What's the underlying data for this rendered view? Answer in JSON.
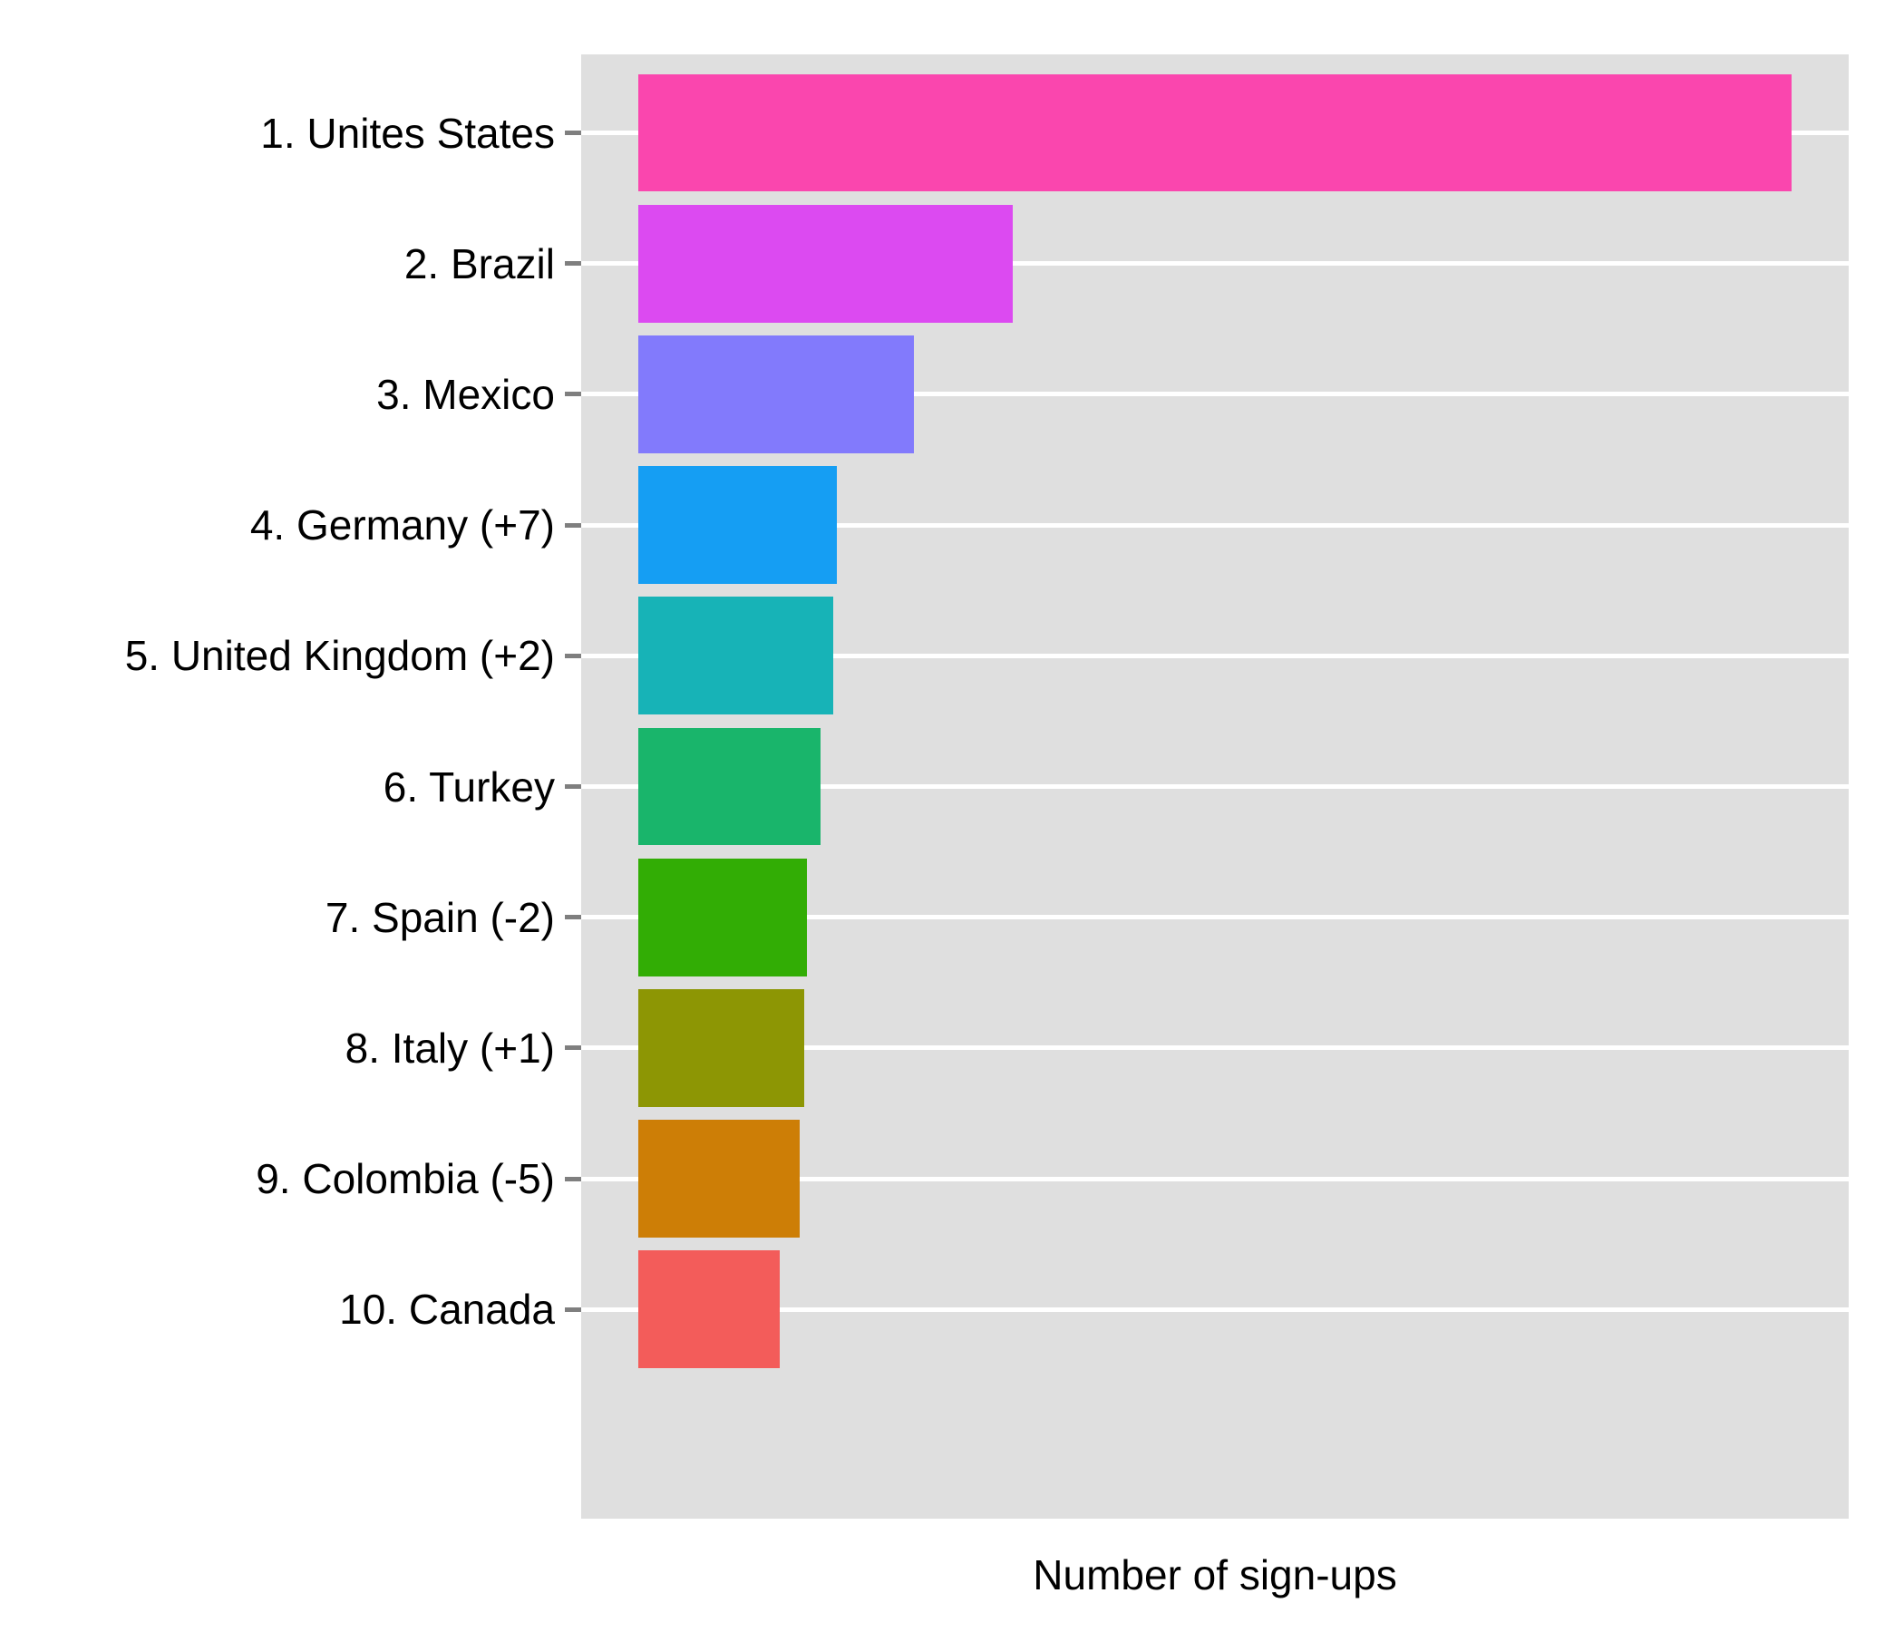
{
  "figure": {
    "background_color": "#FFFFFF",
    "panel_background_color": "#DFDFDF",
    "gridline_color": "#FFFFFF",
    "tick_color": "#7F7F7F",
    "text_color": "#000000"
  },
  "chart_data": {
    "type": "bar",
    "orientation": "horizontal",
    "title": "",
    "xlabel": "Number of sign-ups",
    "ylabel": "",
    "categories": [
      "1. Unites States",
      "2. Brazil",
      "3. Mexico",
      "4. Germany (+7)",
      "5. United Kingdom (+2)",
      "6. Turkey",
      "7. Spain (-2)",
      "8. Italy (+1)",
      "9. Colombia (-5)",
      "10. Canada"
    ],
    "series": [
      {
        "name": "Number of sign-ups (relative, largest bar = 100)",
        "values": [
          100,
          32.5,
          23.9,
          17.2,
          16.9,
          15.8,
          14.6,
          14.4,
          14.0,
          12.3
        ]
      }
    ],
    "bar_colors": [
      "#FA46AE",
      "#DC4AF1",
      "#827AFC",
      "#159EF3",
      "#17B3B7",
      "#19B56B",
      "#32AD05",
      "#8D9604",
      "#CD7E06",
      "#F35C5A"
    ],
    "xlim_relative": [
      0,
      100
    ],
    "x_tick_labels": [],
    "grid": "horizontal white gridlines on grey panel, one per category",
    "legend": "none"
  }
}
